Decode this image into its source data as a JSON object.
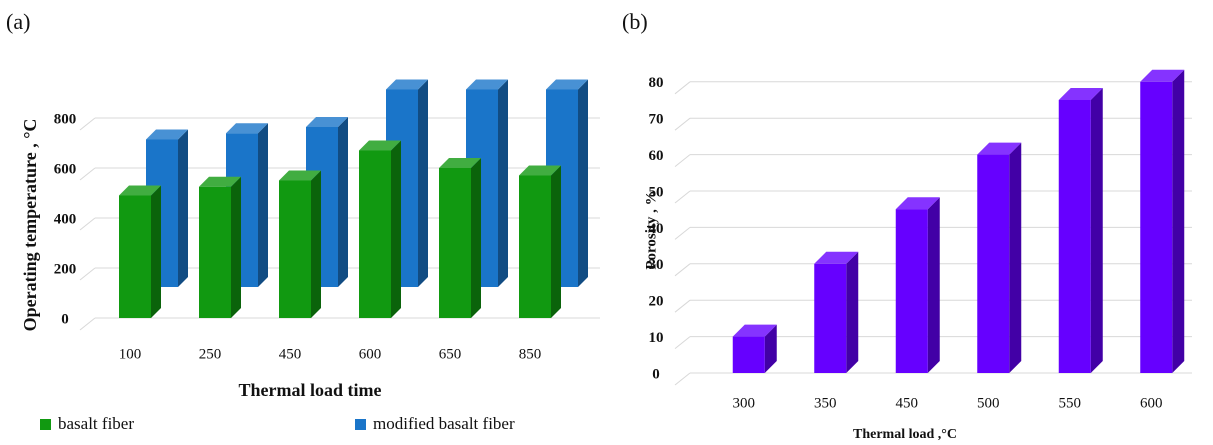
{
  "chart_data": [
    {
      "type": "bar",
      "panel_label": "(a)",
      "y_label": "Operating temperature , °C",
      "x_label": "Thermal load time",
      "categories": [
        "100",
        "250",
        "450",
        "600",
        "650",
        "850"
      ],
      "series": [
        {
          "name": "basalt fiber",
          "color": "#119911",
          "values": [
            490,
            525,
            550,
            670,
            600,
            570
          ]
        },
        {
          "name": "modified basalt fiber",
          "color": "#1a75c9",
          "values": [
            590,
            615,
            640,
            790,
            790,
            790
          ]
        }
      ],
      "ylim": [
        0,
        1000
      ],
      "yticks": [
        0,
        200,
        400,
        600,
        800
      ],
      "grid": true,
      "legend": "bottom"
    },
    {
      "type": "bar",
      "panel_label": "(b)",
      "y_label": "Porosity , %",
      "x_label": "Thermal load ,°C",
      "categories": [
        "300",
        "350",
        "450",
        "500",
        "550",
        "600"
      ],
      "values": [
        10,
        30,
        45,
        60,
        75,
        80
      ],
      "color": "#6600ff",
      "ylim": [
        0,
        80
      ],
      "yticks": [
        0,
        10,
        20,
        30,
        40,
        50,
        60,
        70,
        80
      ],
      "grid": true
    }
  ]
}
